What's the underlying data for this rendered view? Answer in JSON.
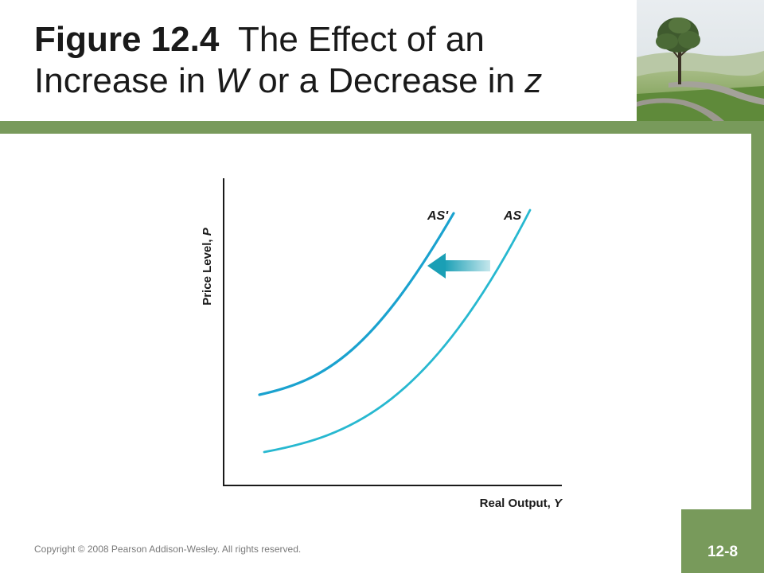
{
  "title": {
    "figure_label": "Figure 12.4",
    "text_part1": "The Effect of an",
    "text_part2": "Increase in ",
    "var_w": "W",
    "text_part3": " or a Decrease in ",
    "var_z": "z"
  },
  "diagram": {
    "y_axis_label": "Price Level, ",
    "y_axis_var": "P",
    "x_axis_label": "Real Output, ",
    "x_axis_var": "Y",
    "curves": [
      {
        "label": "AS'",
        "color": "#1aa2cf"
      },
      {
        "label": "AS",
        "color": "#27b8d0"
      }
    ],
    "arrow": {
      "direction": "left",
      "color": "#1a9fb5"
    },
    "axis_color": "#1a1a1a"
  },
  "footer": {
    "copyright": "Copyright © 2008 Pearson Addison-Wesley. All rights reserved.",
    "page_number": "12-8"
  },
  "theme": {
    "accent_green": "#789a5b"
  },
  "photo": {
    "icon": "landscape-tree-photo"
  }
}
